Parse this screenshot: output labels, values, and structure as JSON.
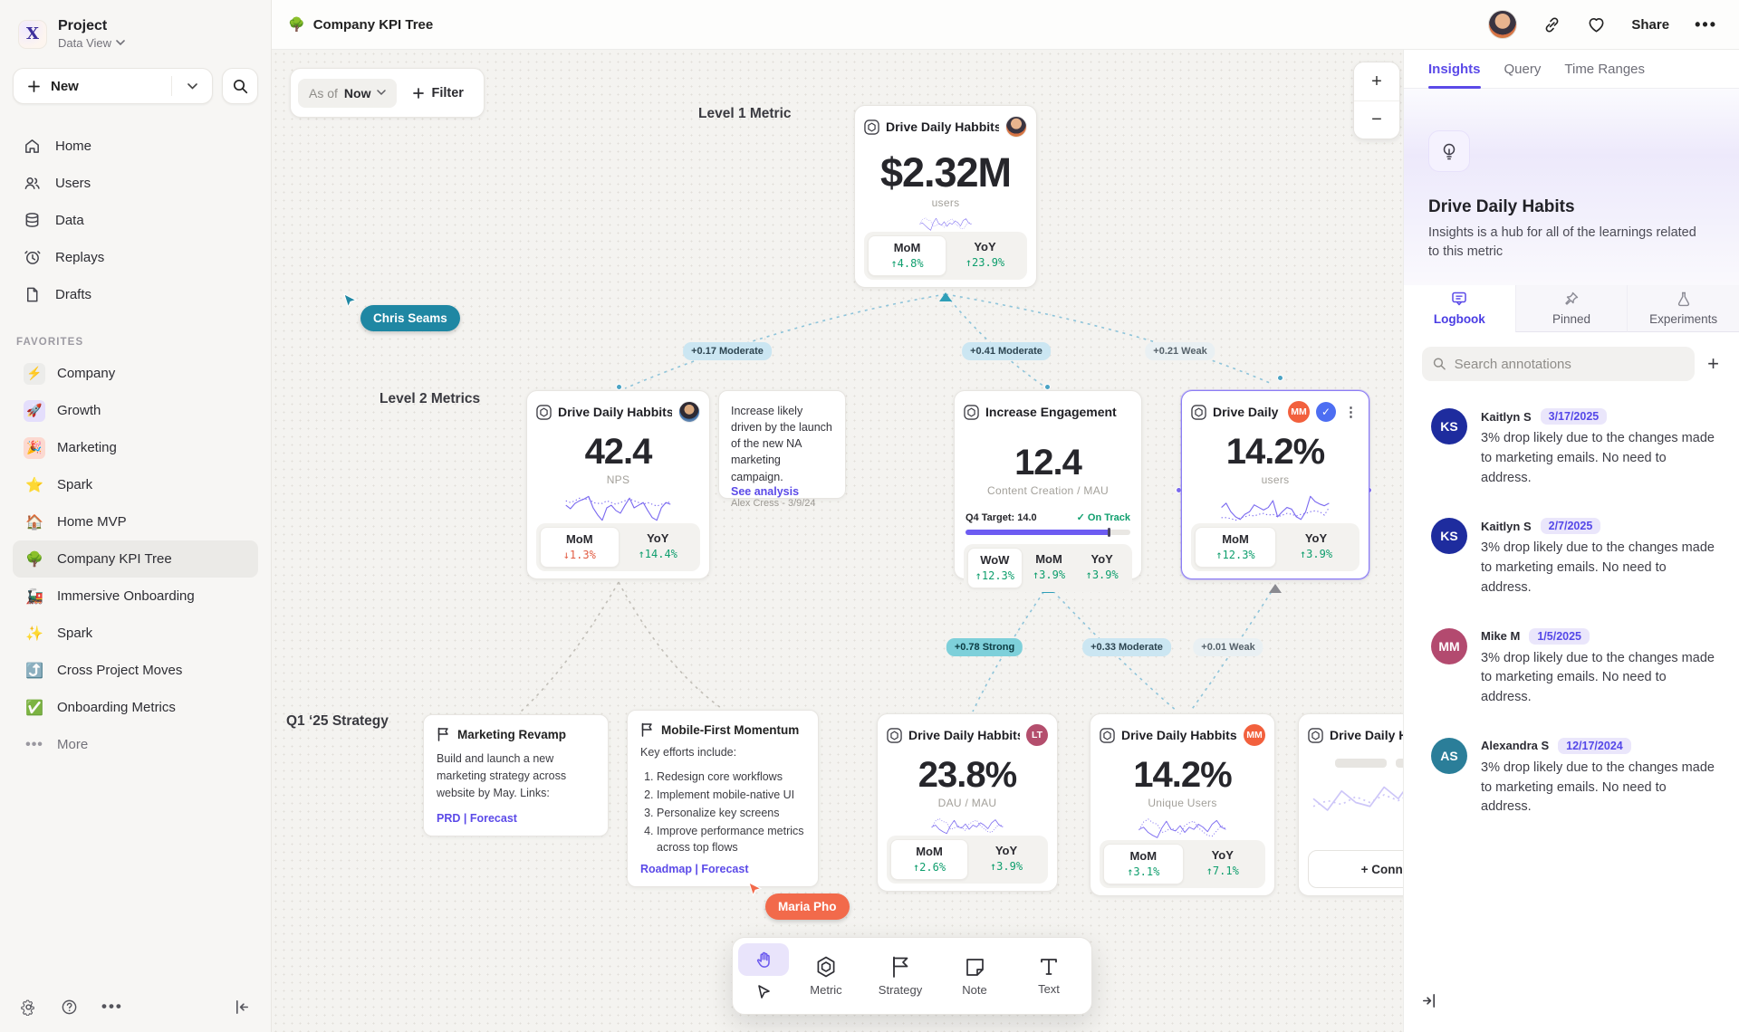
{
  "header": {
    "project_name": "Project",
    "workspace": "Data View",
    "logo_letter": "X",
    "new_button": "New",
    "doc_title": "Company KPI Tree",
    "doc_emoji": "🌳",
    "share": "Share"
  },
  "sidebar": {
    "nav": [
      {
        "label": "Home"
      },
      {
        "label": "Users"
      },
      {
        "label": "Data"
      },
      {
        "label": "Replays"
      },
      {
        "label": "Drafts"
      }
    ],
    "favorites_heading": "FAVORITES",
    "favorites": [
      {
        "emoji": "⚡",
        "label": "Company"
      },
      {
        "emoji": "🚀",
        "label": "Growth"
      },
      {
        "emoji": "🎉",
        "label": "Marketing"
      },
      {
        "emoji": "⭐",
        "label": "Spark"
      },
      {
        "emoji": "🏠",
        "label": "Home MVP"
      },
      {
        "emoji": "🌳",
        "label": "Company KPI Tree"
      },
      {
        "emoji": "🚂",
        "label": "Immersive Onboarding"
      },
      {
        "emoji": "✨",
        "label": "Spark"
      },
      {
        "emoji": "⤴️",
        "label": "Cross Project Moves"
      },
      {
        "emoji": "✅",
        "label": "Onboarding Metrics"
      }
    ],
    "more": "More"
  },
  "canvas": {
    "as_of_label": "As of",
    "as_of_value": "Now",
    "filter_label": "Filter",
    "levels": {
      "l1": "Level 1 Metric",
      "l2": "Level 2 Metrics",
      "l3": "Q1 ‘25 Strategy"
    },
    "cursors": {
      "c1": {
        "name": "Chris Seams",
        "color": "#1f87a3"
      },
      "c2": {
        "name": "Maria Pho",
        "color": "#f26a4b"
      }
    },
    "edges": {
      "e1": "+0.17 Moderate",
      "e2": "+0.41 Moderate",
      "e3": "+0.21 Weak",
      "e4": "+0.78 Strong",
      "e5": "+0.33 Moderate",
      "e6": "+0.01 Weak"
    },
    "l1_card": {
      "title": "Drive Daily Habbits",
      "value": "$2.32M",
      "unit": "users",
      "mom_label": "MoM",
      "mom": "↑4.8%",
      "yoy_label": "YoY",
      "yoy": "↑23.9%",
      "spark": {
        "solid": [
          4.2,
          4.6,
          3.4,
          2.2,
          1.2,
          4.8,
          6.8,
          4.2,
          3.6,
          5.2,
          3.0,
          4.6,
          4.0,
          5.6,
          4.8,
          3.2,
          5.8,
          6.6,
          4.6,
          4.0
        ],
        "dotted": [
          4.0,
          6.2,
          7.0,
          6.0,
          5.6,
          3.0,
          3.4,
          4.4,
          3.8,
          2.6,
          5.0,
          6.0,
          6.4,
          4.4,
          3.4,
          2.2,
          1.8,
          3.4,
          5.0,
          4.2
        ]
      }
    },
    "l2_nps": {
      "title": "Drive Daily Habbits",
      "value": "42.4",
      "unit": "NPS",
      "mom_label": "MoM",
      "mom": "↓1.3%",
      "yoy_label": "YoY",
      "yoy": "↑14.4%",
      "spark": {
        "solid": [
          5.0,
          4.2,
          5.4,
          6.0,
          6.4,
          7.0,
          4.4,
          2.8,
          1.6,
          4.4,
          5.0,
          3.8,
          3.2,
          5.0,
          6.6,
          4.4,
          5.0,
          5.6,
          3.8,
          2.2,
          1.6,
          4.4,
          5.6,
          5.2
        ],
        "dotted": [
          6.0,
          5.6,
          6.0,
          6.6,
          6.2,
          6.6,
          5.6,
          5.4,
          5.4,
          6.0,
          5.6,
          5.2,
          5.6,
          6.0,
          6.4,
          6.0,
          5.6,
          5.2,
          5.6,
          5.2,
          4.8,
          5.2,
          5.4,
          5.8
        ]
      }
    },
    "note": {
      "text": "Increase likely driven by the launch of the new NA marketing campaign.",
      "link": "See analysis",
      "author": "Alex Cress - 3/9/24"
    },
    "l2_engagement": {
      "title": "Increase Engagement",
      "value": "12.4",
      "unit": "Content Creation / MAU",
      "target": "Q4 Target: 14.0",
      "status": "On Track",
      "progress": 0.88,
      "wow_label": "WoW",
      "wow": "↑12.3%",
      "mom_label": "MoM",
      "mom": "↑3.9%",
      "yoy_label": "YoY",
      "yoy": "↑3.9%"
    },
    "l2_selected": {
      "title": "Drive Daily Habb..",
      "badge": "MM",
      "badge_color": "#f2603d",
      "value": "14.2%",
      "unit": "users",
      "mom_label": "MoM",
      "mom": "↑12.3%",
      "yoy_label": "YoY",
      "yoy": "↑3.9%",
      "spark": {
        "solid": [
          6.0,
          7.0,
          5.0,
          3.8,
          3.2,
          4.4,
          5.0,
          6.6,
          6.0,
          5.4,
          6.0,
          7.6,
          3.8,
          5.0,
          6.0,
          5.6,
          3.8,
          3.2,
          5.0,
          8.6,
          7.4,
          6.8,
          6.4,
          7.0
        ],
        "dotted": [
          3.6,
          3.6,
          3.4,
          3.0,
          3.6,
          3.8,
          4.2,
          4.0,
          4.4,
          4.6,
          4.2,
          4.4,
          3.8,
          4.2,
          4.6,
          4.4,
          4.0,
          4.4,
          4.6,
          5.0,
          5.2,
          5.0,
          4.2,
          6.0
        ]
      }
    },
    "strategy1": {
      "title": "Marketing Revamp",
      "body": "Build and launch a new marketing strategy across website by May. Links:",
      "links": "PRD | Forecast"
    },
    "strategy2": {
      "title": "Mobile-First Momentum",
      "intro": "Key efforts include:",
      "items": [
        "Redesign core workflows",
        "Implement mobile-native UI",
        "Personalize key screens",
        "Improve performance metrics across top flows"
      ],
      "links": "Roadmap | Forecast"
    },
    "l3_dau": {
      "title": "Drive Daily Habbits",
      "badge": "LT",
      "badge_color": "#b44e6d",
      "value": "23.8%",
      "unit": "DAU / MAU",
      "mom_label": "MoM",
      "mom": "↑2.6%",
      "yoy_label": "YoY",
      "yoy": "↑3.9%",
      "spark": {
        "solid": [
          3.4,
          4.0,
          2.6,
          1.8,
          1.2,
          3.8,
          5.6,
          3.4,
          3.0,
          4.4,
          2.6,
          4.0,
          3.4,
          4.8,
          4.0,
          2.8,
          4.8,
          5.8,
          4.0,
          3.4
        ],
        "dotted": [
          3.2,
          5.4,
          6.2,
          5.2,
          4.8,
          2.6,
          3.0,
          3.8,
          3.2,
          2.2,
          4.4,
          5.2,
          5.6,
          3.8,
          2.8,
          1.8,
          1.6,
          3.0,
          4.4,
          3.6
        ]
      }
    },
    "l3_unique": {
      "title": "Drive Daily Habbits",
      "badge": "MM",
      "badge_color": "#f2603d",
      "value": "14.2%",
      "unit": "Unique Users",
      "mom_label": "MoM",
      "mom": "↑3.1%",
      "yoy_label": "YoY",
      "yoy": "↑7.1%",
      "spark": {
        "solid": [
          3.6,
          4.2,
          2.8,
          2.0,
          1.4,
          4.0,
          5.8,
          3.6,
          3.2,
          4.6,
          2.8,
          4.2,
          3.6,
          5.0,
          4.2,
          3.0,
          5.0,
          6.0,
          4.2,
          3.6
        ],
        "dotted": [
          3.4,
          5.6,
          6.4,
          5.4,
          5.0,
          2.8,
          3.2,
          4.0,
          3.4,
          2.4,
          4.6,
          5.4,
          5.8,
          4.0,
          3.0,
          2.0,
          1.8,
          3.2,
          4.6,
          3.8
        ]
      }
    },
    "l3_partial": {
      "title": "Drive Daily Habbits",
      "connect": "+ Connect",
      "spark": {
        "solid": [
          3.2,
          2.6,
          3.6,
          3.0,
          2.8,
          3.8,
          3.2,
          4.2,
          3.4,
          3.9,
          3.0,
          3.5
        ],
        "dotted": [
          2.8,
          3.1,
          2.9,
          3.3,
          3.0,
          3.4,
          3.1,
          3.5,
          3.2,
          3.6,
          3.3,
          3.0
        ]
      }
    }
  },
  "right_panel": {
    "tabs": [
      "Insights",
      "Query",
      "Time Ranges"
    ],
    "hero": {
      "title": "Drive Daily Habits",
      "description": "Insights is a hub for all of the learnings related to this metric"
    },
    "subtabs": [
      "Logbook",
      "Pinned",
      "Experiments"
    ],
    "search_placeholder": "Search annotations",
    "annotations": [
      {
        "initials": "KS",
        "name": "Kaitlyn S",
        "date": "3/17/2025",
        "color": "#1e2c9e",
        "text": "3% drop likely due to the changes made to marketing emails. No need to address."
      },
      {
        "initials": "KS",
        "name": "Kaitlyn S",
        "date": "2/7/2025",
        "color": "#1e2c9e",
        "text": "3% drop likely due to the changes made to marketing emails. No need to address."
      },
      {
        "initials": "MM",
        "name": "Mike M",
        "date": "1/5/2025",
        "color": "#b34a6f",
        "text": "3% drop likely due to the changes made to marketing emails. No need to address."
      },
      {
        "initials": "AS",
        "name": "Alexandra S",
        "date": "12/17/2024",
        "color": "#2b7e99",
        "text": "3% drop likely due to the changes made to marketing emails. No need to address."
      }
    ]
  },
  "bottom_toolbar": {
    "tools": [
      "Metric",
      "Strategy",
      "Note",
      "Text"
    ]
  }
}
